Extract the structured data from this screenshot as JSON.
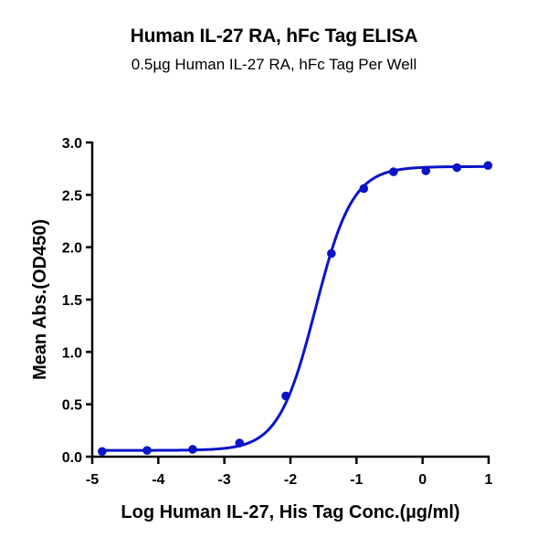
{
  "title": "Human IL-27 RA, hFc Tag ELISA",
  "subtitle": "0.5µg Human IL-27 RA, hFc Tag Per Well",
  "colors": {
    "series": "#0a14c8",
    "axis": "#000000"
  },
  "chart_data": {
    "type": "line",
    "title": "Human IL-27 RA, hFc Tag ELISA",
    "subtitle": "0.5µg Human IL-27 RA, hFc Tag Per Well",
    "xlabel": "Log Human IL-27, His Tag Conc.(µg/ml)",
    "ylabel": "Mean Abs.(OD450)",
    "xlim": [
      -5,
      1
    ],
    "ylim": [
      0,
      3.0
    ],
    "xticks": [
      -5,
      -4,
      -3,
      -2,
      -1,
      0,
      1
    ],
    "xtick_labels": [
      "-5",
      "-4",
      "-3",
      "-2",
      "-1",
      "0",
      "1"
    ],
    "yticks": [
      0,
      0.5,
      1.0,
      1.5,
      2.0,
      2.5,
      3.0
    ],
    "ytick_labels": [
      "0.0",
      "0.5",
      "1.0",
      "1.5",
      "2.0",
      "2.5",
      "3.0"
    ],
    "grid": false,
    "legend": null,
    "series": [
      {
        "name": "Human IL-27 RA, hFc Tag",
        "marker": "circle",
        "fit": "4PL sigmoidal",
        "x": [
          -4.85,
          -4.17,
          -3.48,
          -2.77,
          -2.07,
          -1.38,
          -0.89,
          -0.44,
          0.05,
          0.52,
          0.99
        ],
        "y": [
          0.05,
          0.06,
          0.07,
          0.13,
          0.58,
          1.94,
          2.56,
          2.72,
          2.73,
          2.76,
          2.78
        ]
      }
    ],
    "fit_params": {
      "bottom": 0.06,
      "top": 2.77,
      "logEC50": -1.62,
      "hill": 1.55
    }
  }
}
